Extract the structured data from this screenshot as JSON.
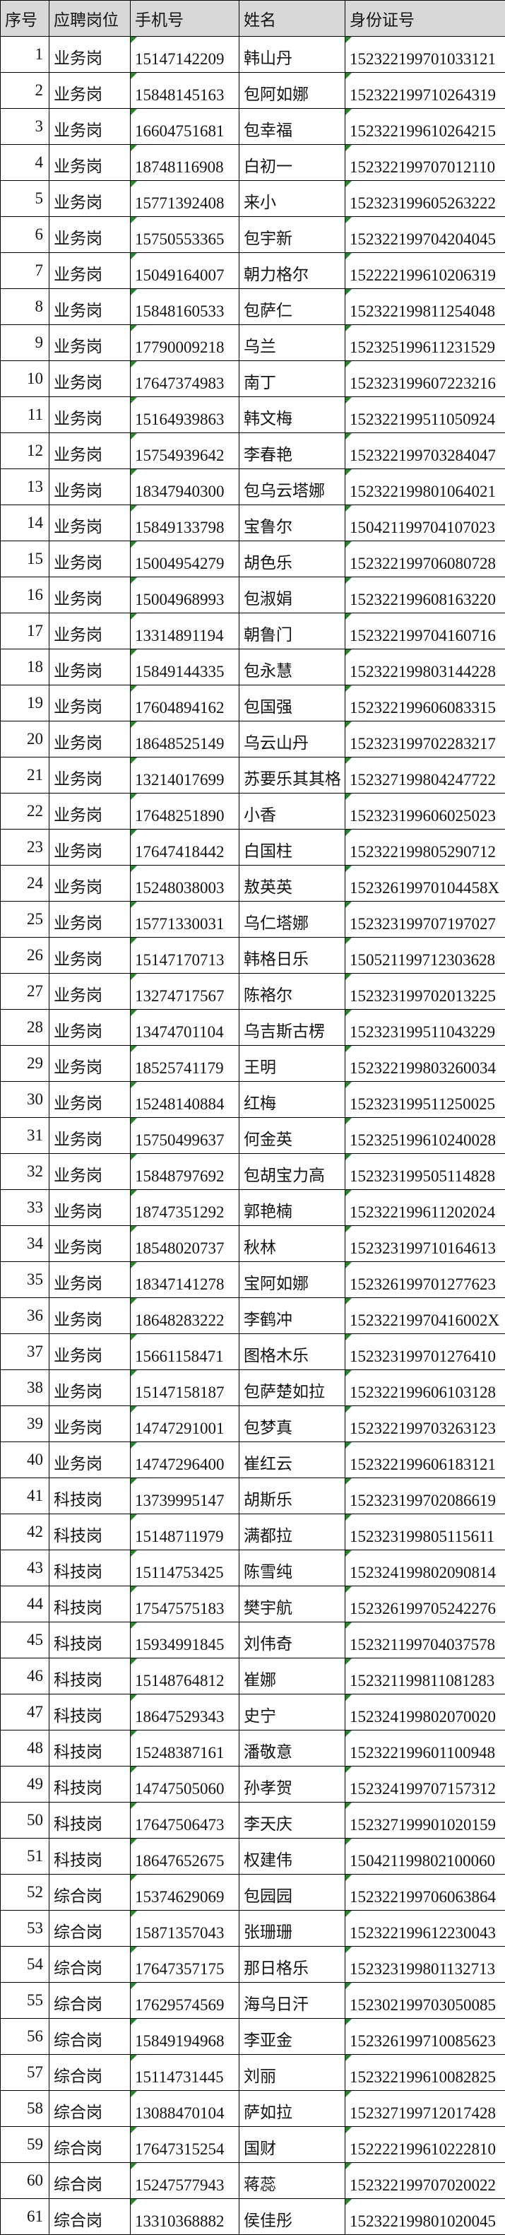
{
  "colors": {
    "header_bg": "#d8d8d8",
    "triangle_indicator": "#1f8a1f",
    "grid_border": "#000000"
  },
  "table": {
    "headers": {
      "no": "序号",
      "post": "应聘岗位",
      "phone": "手机号",
      "name": "姓名",
      "id": "身份证号"
    },
    "rows": [
      {
        "no": "1",
        "post": "业务岗",
        "phone": "15147142209",
        "name": "韩山丹",
        "id": "152322199701033121"
      },
      {
        "no": "2",
        "post": "业务岗",
        "phone": "15848145163",
        "name": "包阿如娜",
        "id": "152322199710264319"
      },
      {
        "no": "3",
        "post": "业务岗",
        "phone": "16604751681",
        "name": "包幸福",
        "id": "152322199610264215"
      },
      {
        "no": "4",
        "post": "业务岗",
        "phone": "18748116908",
        "name": "白初一",
        "id": "152322199707012110"
      },
      {
        "no": "5",
        "post": "业务岗",
        "phone": "15771392408",
        "name": "来小",
        "id": "152323199605263222"
      },
      {
        "no": "6",
        "post": "业务岗",
        "phone": "15750553365",
        "name": "包宇新",
        "id": "152322199704204045"
      },
      {
        "no": "7",
        "post": "业务岗",
        "phone": "15049164007",
        "name": "朝力格尔",
        "id": "152222199610206319"
      },
      {
        "no": "8",
        "post": "业务岗",
        "phone": "15848160533",
        "name": "包萨仁",
        "id": "152322199811254048"
      },
      {
        "no": "9",
        "post": "业务岗",
        "phone": "17790009218",
        "name": "乌兰",
        "id": "152325199611231529"
      },
      {
        "no": "10",
        "post": "业务岗",
        "phone": "17647374983",
        "name": "南丁",
        "id": "152323199607223216"
      },
      {
        "no": "11",
        "post": "业务岗",
        "phone": "15164939863",
        "name": "韩文梅",
        "id": "152322199511050924"
      },
      {
        "no": "12",
        "post": "业务岗",
        "phone": "15754939642",
        "name": "李春艳",
        "id": "152322199703284047"
      },
      {
        "no": "13",
        "post": "业务岗",
        "phone": "18347940300",
        "name": "包乌云塔娜",
        "id": "152322199801064021"
      },
      {
        "no": "14",
        "post": "业务岗",
        "phone": "15849133798",
        "name": "宝鲁尔",
        "id": "150421199704107023"
      },
      {
        "no": "15",
        "post": "业务岗",
        "phone": "15004954279",
        "name": "胡色乐",
        "id": "152322199706080728"
      },
      {
        "no": "16",
        "post": "业务岗",
        "phone": "15004968993",
        "name": "包淑娟",
        "id": "152322199608163220"
      },
      {
        "no": "17",
        "post": "业务岗",
        "phone": "13314891194",
        "name": "朝鲁门",
        "id": "152322199704160716"
      },
      {
        "no": "18",
        "post": "业务岗",
        "phone": "15849144335",
        "name": "包永慧",
        "id": "152322199803144228"
      },
      {
        "no": "19",
        "post": "业务岗",
        "phone": "17604894162",
        "name": "包国强",
        "id": "152322199606083315"
      },
      {
        "no": "20",
        "post": "业务岗",
        "phone": "18648525149",
        "name": "乌云山丹",
        "id": "152323199702283217"
      },
      {
        "no": "21",
        "post": "业务岗",
        "phone": "13214017699",
        "name": "苏要乐其其格",
        "id": "152327199804247722"
      },
      {
        "no": "22",
        "post": "业务岗",
        "phone": "17648251890",
        "name": "小香",
        "id": "152323199606025023"
      },
      {
        "no": "23",
        "post": "业务岗",
        "phone": "17647418442",
        "name": "白国柱",
        "id": "152322199805290712"
      },
      {
        "no": "24",
        "post": "业务岗",
        "phone": "15248038003",
        "name": "敖英英",
        "id": "15232619970104458X"
      },
      {
        "no": "25",
        "post": "业务岗",
        "phone": "15771330031",
        "name": "乌仁塔娜",
        "id": "152323199707197027"
      },
      {
        "no": "26",
        "post": "业务岗",
        "phone": "15147170713",
        "name": "韩格日乐",
        "id": "150521199712303628"
      },
      {
        "no": "27",
        "post": "业务岗",
        "phone": "13274717567",
        "name": "陈袼尔",
        "id": "152323199702013225"
      },
      {
        "no": "28",
        "post": "业务岗",
        "phone": "13474701104",
        "name": "乌吉斯古楞",
        "id": "152323199511043229"
      },
      {
        "no": "29",
        "post": "业务岗",
        "phone": "18525741179",
        "name": "王明",
        "id": "152322199803260034"
      },
      {
        "no": "30",
        "post": "业务岗",
        "phone": "15248140884",
        "name": "红梅",
        "id": "152323199511250025"
      },
      {
        "no": "31",
        "post": "业务岗",
        "phone": "15750499637",
        "name": "何金英",
        "id": "152325199610240028"
      },
      {
        "no": "32",
        "post": "业务岗",
        "phone": "15848797692",
        "name": "包胡宝力高",
        "id": "152323199505114828"
      },
      {
        "no": "33",
        "post": "业务岗",
        "phone": "18747351292",
        "name": "郭艳楠",
        "id": "152322199611202024"
      },
      {
        "no": "34",
        "post": "业务岗",
        "phone": "18548020737",
        "name": "秋林",
        "id": "152323199710164613"
      },
      {
        "no": "35",
        "post": "业务岗",
        "phone": "18347141278",
        "name": "宝阿如娜",
        "id": "152326199701277623"
      },
      {
        "no": "36",
        "post": "业务岗",
        "phone": "18648283222",
        "name": "李鹤冲",
        "id": "15232219970416002X"
      },
      {
        "no": "37",
        "post": "业务岗",
        "phone": "15661158471",
        "name": "图格木乐",
        "id": "152323199701276410"
      },
      {
        "no": "38",
        "post": "业务岗",
        "phone": "15147158187",
        "name": "包萨楚如拉",
        "id": "152322199606103128"
      },
      {
        "no": "39",
        "post": "业务岗",
        "phone": "14747291001",
        "name": "包梦真",
        "id": "152322199703263123"
      },
      {
        "no": "40",
        "post": "业务岗",
        "phone": "14747296400",
        "name": "崔红云",
        "id": "152322199606183121"
      },
      {
        "no": "41",
        "post": "科技岗",
        "phone": "13739995147",
        "name": "胡斯乐",
        "id": "152323199702086619"
      },
      {
        "no": "42",
        "post": "科技岗",
        "phone": "15148711979",
        "name": "满都拉",
        "id": "152323199805115611"
      },
      {
        "no": "43",
        "post": "科技岗",
        "phone": "15114753425",
        "name": "陈雪纯",
        "id": "152324199802090814"
      },
      {
        "no": "44",
        "post": "科技岗",
        "phone": "17547575183",
        "name": "樊宇航",
        "id": "152326199705242276"
      },
      {
        "no": "45",
        "post": "科技岗",
        "phone": "15934991845",
        "name": "刘伟奇",
        "id": "152321199704037578"
      },
      {
        "no": "46",
        "post": "科技岗",
        "phone": "15148764812",
        "name": "崔娜",
        "id": "152321199811081283"
      },
      {
        "no": "47",
        "post": "科技岗",
        "phone": "18647529343",
        "name": "史宁",
        "id": "152324199802070020"
      },
      {
        "no": "48",
        "post": "科技岗",
        "phone": "15248387161",
        "name": "潘敬意",
        "id": "152322199601100948"
      },
      {
        "no": "49",
        "post": "科技岗",
        "phone": "14747505060",
        "name": "孙孝贺",
        "id": "152324199707157312"
      },
      {
        "no": "50",
        "post": "科技岗",
        "phone": "17647506473",
        "name": "李天庆",
        "id": "152327199901020159"
      },
      {
        "no": "51",
        "post": "科技岗",
        "phone": "18647652675",
        "name": "权建伟",
        "id": "150421199802100060"
      },
      {
        "no": "52",
        "post": "综合岗",
        "phone": "15374629069",
        "name": "包园园",
        "id": "152322199706063864"
      },
      {
        "no": "53",
        "post": "综合岗",
        "phone": "15871357043",
        "name": "张珊珊",
        "id": "152322199612230043"
      },
      {
        "no": "54",
        "post": "综合岗",
        "phone": "17647357175",
        "name": "那日格乐",
        "id": "152323199801132713"
      },
      {
        "no": "55",
        "post": "综合岗",
        "phone": "17629574569",
        "name": "海乌日汗",
        "id": "152302199703050085"
      },
      {
        "no": "56",
        "post": "综合岗",
        "phone": "15849194968",
        "name": "李亚金",
        "id": "152326199710085623"
      },
      {
        "no": "57",
        "post": "综合岗",
        "phone": "15114731445",
        "name": "刘丽",
        "id": "152322199610082825"
      },
      {
        "no": "58",
        "post": "综合岗",
        "phone": "13088470104",
        "name": "萨如拉",
        "id": "152327199712017428"
      },
      {
        "no": "59",
        "post": "综合岗",
        "phone": "17647315254",
        "name": "国财",
        "id": "152222199610222810"
      },
      {
        "no": "60",
        "post": "综合岗",
        "phone": "15247577943",
        "name": "蒋蕊",
        "id": "152322199707020022"
      },
      {
        "no": "61",
        "post": "综合岗",
        "phone": "13310368882",
        "name": "侯佳彤",
        "id": "152322199801020045"
      }
    ]
  }
}
